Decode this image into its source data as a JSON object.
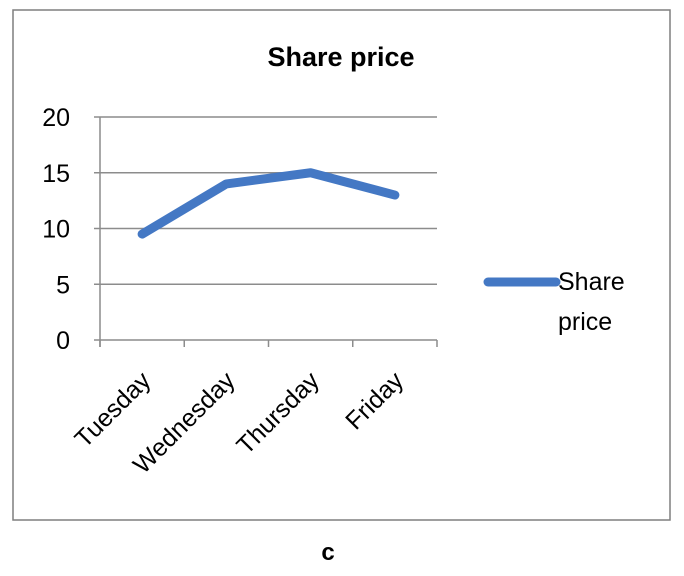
{
  "chart_data": {
    "type": "line",
    "title": "Share price",
    "categories": [
      "Tuesday",
      "Wednesday",
      "Thursday",
      "Friday"
    ],
    "series": [
      {
        "name": "Share price",
        "values": [
          9.5,
          14,
          15,
          13
        ]
      }
    ],
    "yticks": [
      "0",
      "5",
      "10",
      "15",
      "20"
    ],
    "ylim": [
      0,
      20
    ],
    "grid": true,
    "legend_position": "right",
    "legend_lines": [
      "Share",
      "price"
    ],
    "line_color": "#4478c4"
  },
  "caption": "c"
}
